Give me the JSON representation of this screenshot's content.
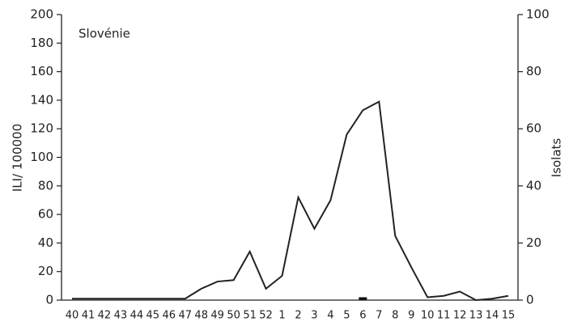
{
  "chart_data": {
    "type": "line",
    "annotation": "Slovénie",
    "ylabel": "ILI/ 100000",
    "y2label": "Isolats",
    "categories": [
      "40",
      "41",
      "42",
      "43",
      "44",
      "45",
      "46",
      "47",
      "48",
      "49",
      "50",
      "51",
      "52",
      "1",
      "2",
      "3",
      "4",
      "5",
      "6",
      "7",
      "8",
      "9",
      "10",
      "11",
      "12",
      "13",
      "14",
      "15"
    ],
    "series": [
      {
        "type": "line",
        "color": "#222222",
        "values": [
          1,
          1,
          1,
          1,
          1,
          1,
          1,
          1,
          8,
          13,
          14,
          34,
          8,
          17,
          72,
          50,
          70,
          116,
          133,
          139,
          45,
          23,
          2,
          3,
          6,
          0,
          1,
          3
        ]
      },
      {
        "type": "bar",
        "axis": "y2",
        "color": "#111111",
        "values": [
          0,
          0,
          0,
          0,
          0,
          0,
          0,
          0,
          0,
          0,
          0,
          0,
          0,
          0,
          0,
          0,
          0,
          0,
          1,
          0,
          0,
          0,
          0,
          0,
          0,
          0,
          0,
          0
        ]
      }
    ],
    "ylim": [
      0,
      200
    ],
    "yticks": [
      0,
      20,
      40,
      60,
      80,
      100,
      120,
      140,
      160,
      180,
      200
    ],
    "y2lim": [
      0,
      100
    ],
    "y2ticks": [
      0,
      20,
      40,
      60,
      80,
      100
    ]
  }
}
